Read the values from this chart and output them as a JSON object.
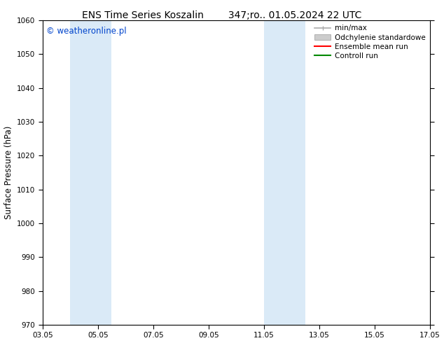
{
  "title_left": "ENS Time Series Koszalin",
  "title_right": "347;ro.. 01.05.2024 22 UTC",
  "ylabel": "Surface Pressure (hPa)",
  "ylim": [
    970,
    1060
  ],
  "yticks": [
    970,
    980,
    990,
    1000,
    1010,
    1020,
    1030,
    1040,
    1050,
    1060
  ],
  "xtick_positions": [
    3,
    5,
    7,
    9,
    11,
    13,
    15,
    17
  ],
  "xtick_labels": [
    "03.05",
    "05.05",
    "07.05",
    "09.05",
    "11.05",
    "13.05",
    "15.05",
    "17.05"
  ],
  "xlim": [
    3,
    17
  ],
  "background_color": "#ffffff",
  "plot_bg_color": "#ffffff",
  "watermark": "© weatheronline.pl",
  "watermark_color": "#0044cc",
  "shaded_regions": [
    {
      "x_start": 4.0,
      "x_end": 5.5,
      "color": "#daeaf7"
    },
    {
      "x_start": 11.0,
      "x_end": 12.5,
      "color": "#daeaf7"
    }
  ],
  "legend_entries": [
    {
      "label": "min/max",
      "type": "minmax",
      "color": "#aaaaaa"
    },
    {
      "label": "Odchylenie standardowe",
      "type": "patch",
      "color": "#cccccc"
    },
    {
      "label": "Ensemble mean run",
      "type": "line",
      "color": "#ff0000"
    },
    {
      "label": "Controll run",
      "type": "line",
      "color": "#008800"
    }
  ],
  "title_fontsize": 10,
  "tick_fontsize": 7.5,
  "ylabel_fontsize": 8.5,
  "watermark_fontsize": 8.5,
  "legend_fontsize": 7.5
}
